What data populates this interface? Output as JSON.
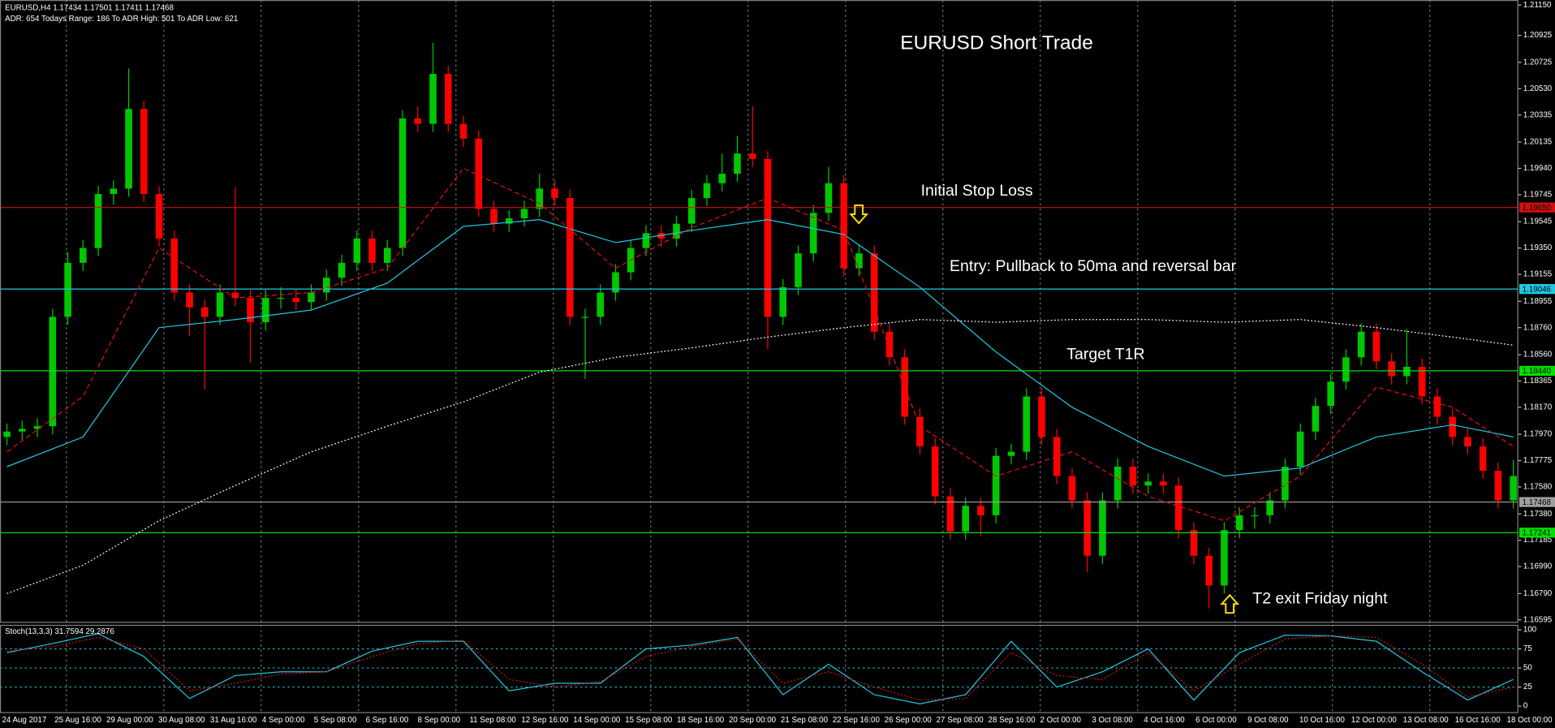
{
  "chart_data": [
    {
      "type": "candlestick",
      "title": "EURUSD Short Trade",
      "header": [
        "EURUSD,H4  1.17434 1.17501 1.17411 1.17468",
        "ADR: 654  Todays Range: 186  To ADR High: 501  To ADR Low: 621"
      ],
      "annotations": [
        "Initial Stop Loss",
        "Entry: Pullback to 50ma and reversal bar",
        "Target T1R",
        "T2 exit Friday night"
      ],
      "x_labels": [
        "24 Aug 2017",
        "25 Aug 16:00",
        "29 Aug 00:00",
        "30 Aug 08:00",
        "31 Aug 16:00",
        "4 Sep 00:00",
        "5 Sep 08:00",
        "6 Sep 16:00",
        "8 Sep 00:00",
        "11 Sep 08:00",
        "12 Sep 16:00",
        "14 Sep 00:00",
        "15 Sep 08:00",
        "18 Sep 16:00",
        "20 Sep 00:00",
        "21 Sep 08:00",
        "22 Sep 16:00",
        "26 Sep 00:00",
        "27 Sep 08:00",
        "28 Sep 16:00",
        "2 Oct 00:00",
        "3 Oct 08:00",
        "4 Oct 16:00",
        "6 Oct 00:00",
        "9 Oct 08:00",
        "10 Oct 16:00",
        "12 Oct 00:00",
        "13 Oct 08:00",
        "16 Oct 16:00",
        "18 Oct 00:00"
      ],
      "up_color": "#00c800",
      "down_color": "#ff0000",
      "candles": [
        [
          1.1795,
          1.1805,
          1.1789,
          1.1799
        ],
        [
          1.1799,
          1.1807,
          1.1793,
          1.1801
        ],
        [
          1.1801,
          1.1809,
          1.1795,
          1.1803
        ],
        [
          1.1803,
          1.189,
          1.1797,
          1.1884
        ],
        [
          1.1884,
          1.1932,
          1.1878,
          1.1924
        ],
        [
          1.1924,
          1.1941,
          1.1918,
          1.1935
        ],
        [
          1.1935,
          1.1981,
          1.1929,
          1.1975
        ],
        [
          1.1975,
          1.1985,
          1.1967,
          1.1979
        ],
        [
          1.1979,
          1.2068,
          1.1973,
          1.2038
        ],
        [
          1.2038,
          1.2044,
          1.1969,
          1.1975
        ],
        [
          1.1975,
          1.1981,
          1.1936,
          1.1942
        ],
        [
          1.1942,
          1.1948,
          1.1896,
          1.1902
        ],
        [
          1.1902,
          1.1908,
          1.187,
          1.1891
        ],
        [
          1.1891,
          1.1897,
          1.183,
          1.1884
        ],
        [
          1.1884,
          1.1908,
          1.1878,
          1.1902
        ],
        [
          1.1902,
          1.198,
          1.1892,
          1.1898
        ],
        [
          1.1898,
          1.1904,
          1.185,
          1.188
        ],
        [
          1.188,
          1.1904,
          1.1874,
          1.1898
        ],
        [
          1.1898,
          1.1906,
          1.189,
          1.1898
        ],
        [
          1.1898,
          1.1904,
          1.1889,
          1.1895
        ],
        [
          1.1895,
          1.1908,
          1.1889,
          1.1902
        ],
        [
          1.1902,
          1.1919,
          1.1896,
          1.1913
        ],
        [
          1.1913,
          1.193,
          1.1907,
          1.1924
        ],
        [
          1.1924,
          1.1948,
          1.1918,
          1.1942
        ],
        [
          1.1942,
          1.1948,
          1.1918,
          1.1924
        ],
        [
          1.1924,
          1.1941,
          1.1918,
          1.1935
        ],
        [
          1.1935,
          1.2037,
          1.1929,
          1.2031
        ],
        [
          1.2031,
          1.204,
          1.2021,
          1.2027
        ],
        [
          1.2027,
          1.2087,
          1.2021,
          1.2064
        ],
        [
          1.2064,
          1.207,
          1.2021,
          1.2027
        ],
        [
          1.2027,
          1.2033,
          1.201,
          1.2016
        ],
        [
          1.2016,
          1.2022,
          1.1958,
          1.1964
        ],
        [
          1.1964,
          1.197,
          1.1947,
          1.1953
        ],
        [
          1.1953,
          1.1963,
          1.1947,
          1.1957
        ],
        [
          1.1957,
          1.197,
          1.1951,
          1.1964
        ],
        [
          1.1964,
          1.199,
          1.1958,
          1.1979
        ],
        [
          1.1979,
          1.1985,
          1.1966,
          1.1972
        ],
        [
          1.1972,
          1.1978,
          1.1878,
          1.1884
        ],
        [
          1.1884,
          1.189,
          1.1838,
          1.1884
        ],
        [
          1.1884,
          1.1908,
          1.1878,
          1.1902
        ],
        [
          1.1902,
          1.1923,
          1.1896,
          1.1917
        ],
        [
          1.1917,
          1.1941,
          1.1911,
          1.1935
        ],
        [
          1.1935,
          1.1952,
          1.1929,
          1.1946
        ],
        [
          1.1946,
          1.1952,
          1.1936,
          1.1942
        ],
        [
          1.1942,
          1.1959,
          1.1936,
          1.1953
        ],
        [
          1.1953,
          1.1978,
          1.1947,
          1.1972
        ],
        [
          1.1972,
          1.1989,
          1.1966,
          1.1983
        ],
        [
          1.1983,
          1.2005,
          1.1977,
          1.199
        ],
        [
          1.199,
          1.2018,
          1.1984,
          1.2005
        ],
        [
          1.2005,
          1.204,
          1.1995,
          1.2001
        ],
        [
          1.2001,
          1.2007,
          1.186,
          1.1884
        ],
        [
          1.1884,
          1.1912,
          1.1878,
          1.1906
        ],
        [
          1.1906,
          1.1937,
          1.19,
          1.1931
        ],
        [
          1.1931,
          1.1967,
          1.1925,
          1.1961
        ],
        [
          1.1961,
          1.1995,
          1.1955,
          1.1983
        ],
        [
          1.1983,
          1.1989,
          1.1914,
          1.192
        ],
        [
          1.192,
          1.1937,
          1.1914,
          1.1931
        ],
        [
          1.1931,
          1.1937,
          1.1867,
          1.1873
        ],
        [
          1.1873,
          1.1879,
          1.1848,
          1.1854
        ],
        [
          1.1854,
          1.186,
          1.1804,
          1.181
        ],
        [
          1.181,
          1.1816,
          1.1782,
          1.1788
        ],
        [
          1.1788,
          1.1794,
          1.1745,
          1.1751
        ],
        [
          1.1751,
          1.1757,
          1.1719,
          1.1725
        ],
        [
          1.1725,
          1.175,
          1.1719,
          1.1744
        ],
        [
          1.1744,
          1.175,
          1.1722,
          1.1737
        ],
        [
          1.1737,
          1.1787,
          1.1731,
          1.1781
        ],
        [
          1.1781,
          1.179,
          1.1775,
          1.1784
        ],
        [
          1.1784,
          1.1831,
          1.1778,
          1.1825
        ],
        [
          1.1825,
          1.1831,
          1.1789,
          1.1795
        ],
        [
          1.1795,
          1.1801,
          1.176,
          1.1766
        ],
        [
          1.1766,
          1.1772,
          1.1742,
          1.1748
        ],
        [
          1.1748,
          1.1754,
          1.1695,
          1.1707
        ],
        [
          1.1707,
          1.1754,
          1.1701,
          1.1748
        ],
        [
          1.1748,
          1.1779,
          1.1742,
          1.1773
        ],
        [
          1.1773,
          1.1779,
          1.1753,
          1.1759
        ],
        [
          1.1759,
          1.1768,
          1.1753,
          1.1762
        ],
        [
          1.1762,
          1.1768,
          1.1753,
          1.1759
        ],
        [
          1.1759,
          1.1765,
          1.172,
          1.1726
        ],
        [
          1.1726,
          1.1732,
          1.1701,
          1.1707
        ],
        [
          1.1707,
          1.1713,
          1.1668,
          1.1685
        ],
        [
          1.1685,
          1.1732,
          1.1679,
          1.1726
        ],
        [
          1.1726,
          1.1743,
          1.172,
          1.1737
        ],
        [
          1.1737,
          1.1743,
          1.1727,
          1.1737
        ],
        [
          1.1737,
          1.1754,
          1.1731,
          1.1748
        ],
        [
          1.1748,
          1.1779,
          1.1742,
          1.1773
        ],
        [
          1.1773,
          1.1805,
          1.1767,
          1.1799
        ],
        [
          1.1799,
          1.1824,
          1.1793,
          1.1818
        ],
        [
          1.1818,
          1.1842,
          1.1812,
          1.1836
        ],
        [
          1.1836,
          1.186,
          1.183,
          1.1854
        ],
        [
          1.1854,
          1.1879,
          1.1848,
          1.1873
        ],
        [
          1.1873,
          1.1879,
          1.1845,
          1.1851
        ],
        [
          1.1851,
          1.1857,
          1.1834,
          1.184
        ],
        [
          1.184,
          1.1875,
          1.1834,
          1.1847
        ],
        [
          1.1847,
          1.1853,
          1.1819,
          1.1825
        ],
        [
          1.1825,
          1.1831,
          1.1804,
          1.181
        ],
        [
          1.181,
          1.1816,
          1.1789,
          1.1795
        ],
        [
          1.1795,
          1.1801,
          1.1782,
          1.1788
        ],
        [
          1.1788,
          1.1794,
          1.1764,
          1.177
        ],
        [
          1.177,
          1.1776,
          1.1742,
          1.1748
        ],
        [
          1.1748,
          1.1778,
          1.1742,
          1.1766
        ]
      ],
      "series": [
        {
          "color": "#ffffff",
          "style": "dotted",
          "x": [
            0,
            5,
            10,
            15,
            20,
            25,
            30,
            35,
            40,
            45,
            50,
            55,
            60,
            65,
            70,
            75,
            80,
            85,
            90,
            95,
            99
          ],
          "values": [
            1.1679,
            1.17,
            1.1733,
            1.1759,
            1.1784,
            1.1803,
            1.1821,
            1.1843,
            1.1854,
            1.1861,
            1.1869,
            1.1876,
            1.1882,
            1.188,
            1.1882,
            1.1882,
            1.188,
            1.1882,
            1.1876,
            1.1869,
            1.1863
          ]
        },
        {
          "color": "#20c8e0",
          "style": "solid",
          "x": [
            0,
            5,
            10,
            15,
            20,
            25,
            30,
            35,
            40,
            45,
            50,
            55,
            60,
            65,
            70,
            75,
            80,
            85,
            90,
            95,
            99
          ],
          "values": [
            1.1773,
            1.1795,
            1.1876,
            1.1882,
            1.1889,
            1.1909,
            1.1951,
            1.1956,
            1.1939,
            1.1948,
            1.1956,
            1.1945,
            1.1906,
            1.1858,
            1.1817,
            1.1788,
            1.1766,
            1.1772,
            1.1795,
            1.1804,
            1.1795
          ]
        },
        {
          "color": "#e01010",
          "style": "dashed",
          "x": [
            0,
            5,
            10,
            15,
            20,
            25,
            30,
            35,
            40,
            45,
            50,
            55,
            60,
            65,
            70,
            75,
            80,
            85,
            90,
            95,
            99
          ],
          "values": [
            1.1784,
            1.1825,
            1.1935,
            1.1898,
            1.1902,
            1.192,
            1.1994,
            1.1968,
            1.192,
            1.195,
            1.1972,
            1.1948,
            1.1803,
            1.1766,
            1.1784,
            1.1751,
            1.1733,
            1.1766,
            1.1832,
            1.1817,
            1.1788
          ]
        }
      ],
      "levels": [
        {
          "price": {
            "value": 1.1965,
            "label": "1.19650"
          },
          "color": "#d01010"
        },
        {
          "price": 1.19046,
          "color": "#20c8e0"
        },
        {
          "price": {
            "value": 1.1844,
            "label": "1.18440"
          },
          "color": "#00e000"
        },
        {
          "price": 1.17468,
          "color": "#a0a0a0"
        },
        {
          "price": 1.17241,
          "color": "#00e000"
        }
      ],
      "ylim": [
        1.16573,
        1.21187
      ],
      "yticks": [
        {
          "value": 1.2115,
          "label": "1.21150"
        },
        1.20925,
        1.20725,
        {
          "value": 1.2053,
          "label": "1.20530"
        },
        1.20335,
        1.20135,
        {
          "value": 1.1994,
          "label": "1.19940"
        },
        1.19745,
        1.19545,
        {
          "value": 1.1935,
          "label": "1.19350"
        },
        1.19155,
        1.18955,
        {
          "value": 1.1876,
          "label": "1.18760"
        },
        {
          "value": 1.1856,
          "label": "1.18560"
        },
        1.18365,
        {
          "value": 1.1817,
          "label": "1.18170"
        },
        {
          "value": 1.1797,
          "label": "1.17970"
        },
        1.17775,
        {
          "value": 1.1758,
          "label": "1.17580"
        },
        {
          "value": 1.1738,
          "label": "1.17380"
        },
        1.17185,
        {
          "value": 1.1699,
          "label": "1.16990"
        },
        {
          "value": 1.1679,
          "label": "1.16790"
        },
        1.16595
      ]
    },
    {
      "type": "line",
      "title": "Stoch(13,3,3) 31.7594 29.2876",
      "series": [
        {
          "color": "#20c8e0",
          "style": "solid",
          "x": [
            0,
            3,
            6,
            9,
            12,
            15,
            18,
            21,
            24,
            27,
            30,
            33,
            36,
            39,
            42,
            45,
            48,
            51,
            54,
            57,
            60,
            63,
            66,
            69,
            72,
            75,
            78,
            81,
            84,
            87,
            90,
            93,
            96,
            99
          ],
          "values": [
            70,
            82,
            95,
            65,
            10,
            40,
            45,
            45,
            72,
            85,
            85,
            20,
            30,
            30,
            75,
            80,
            90,
            15,
            55,
            15,
            3,
            15,
            85,
            25,
            45,
            75,
            8,
            70,
            93,
            92,
            85,
            45,
            8,
            35
          ]
        },
        {
          "color": "#e01010",
          "style": "dotted",
          "x": [
            0,
            3,
            6,
            9,
            12,
            15,
            18,
            21,
            24,
            27,
            30,
            33,
            36,
            39,
            42,
            45,
            48,
            51,
            54,
            57,
            60,
            63,
            66,
            69,
            72,
            75,
            78,
            81,
            84,
            87,
            90,
            93,
            96,
            99
          ],
          "values": [
            72,
            78,
            90,
            75,
            20,
            30,
            42,
            45,
            65,
            82,
            86,
            35,
            25,
            32,
            65,
            78,
            88,
            30,
            45,
            25,
            8,
            10,
            70,
            40,
            35,
            70,
            20,
            55,
            88,
            92,
            90,
            55,
            12,
            25
          ]
        }
      ],
      "levels": [
        75,
        50,
        25
      ],
      "ylim": [
        -7.8,
        106.5
      ],
      "yticks": [
        100,
        75,
        50,
        25,
        0
      ]
    }
  ]
}
